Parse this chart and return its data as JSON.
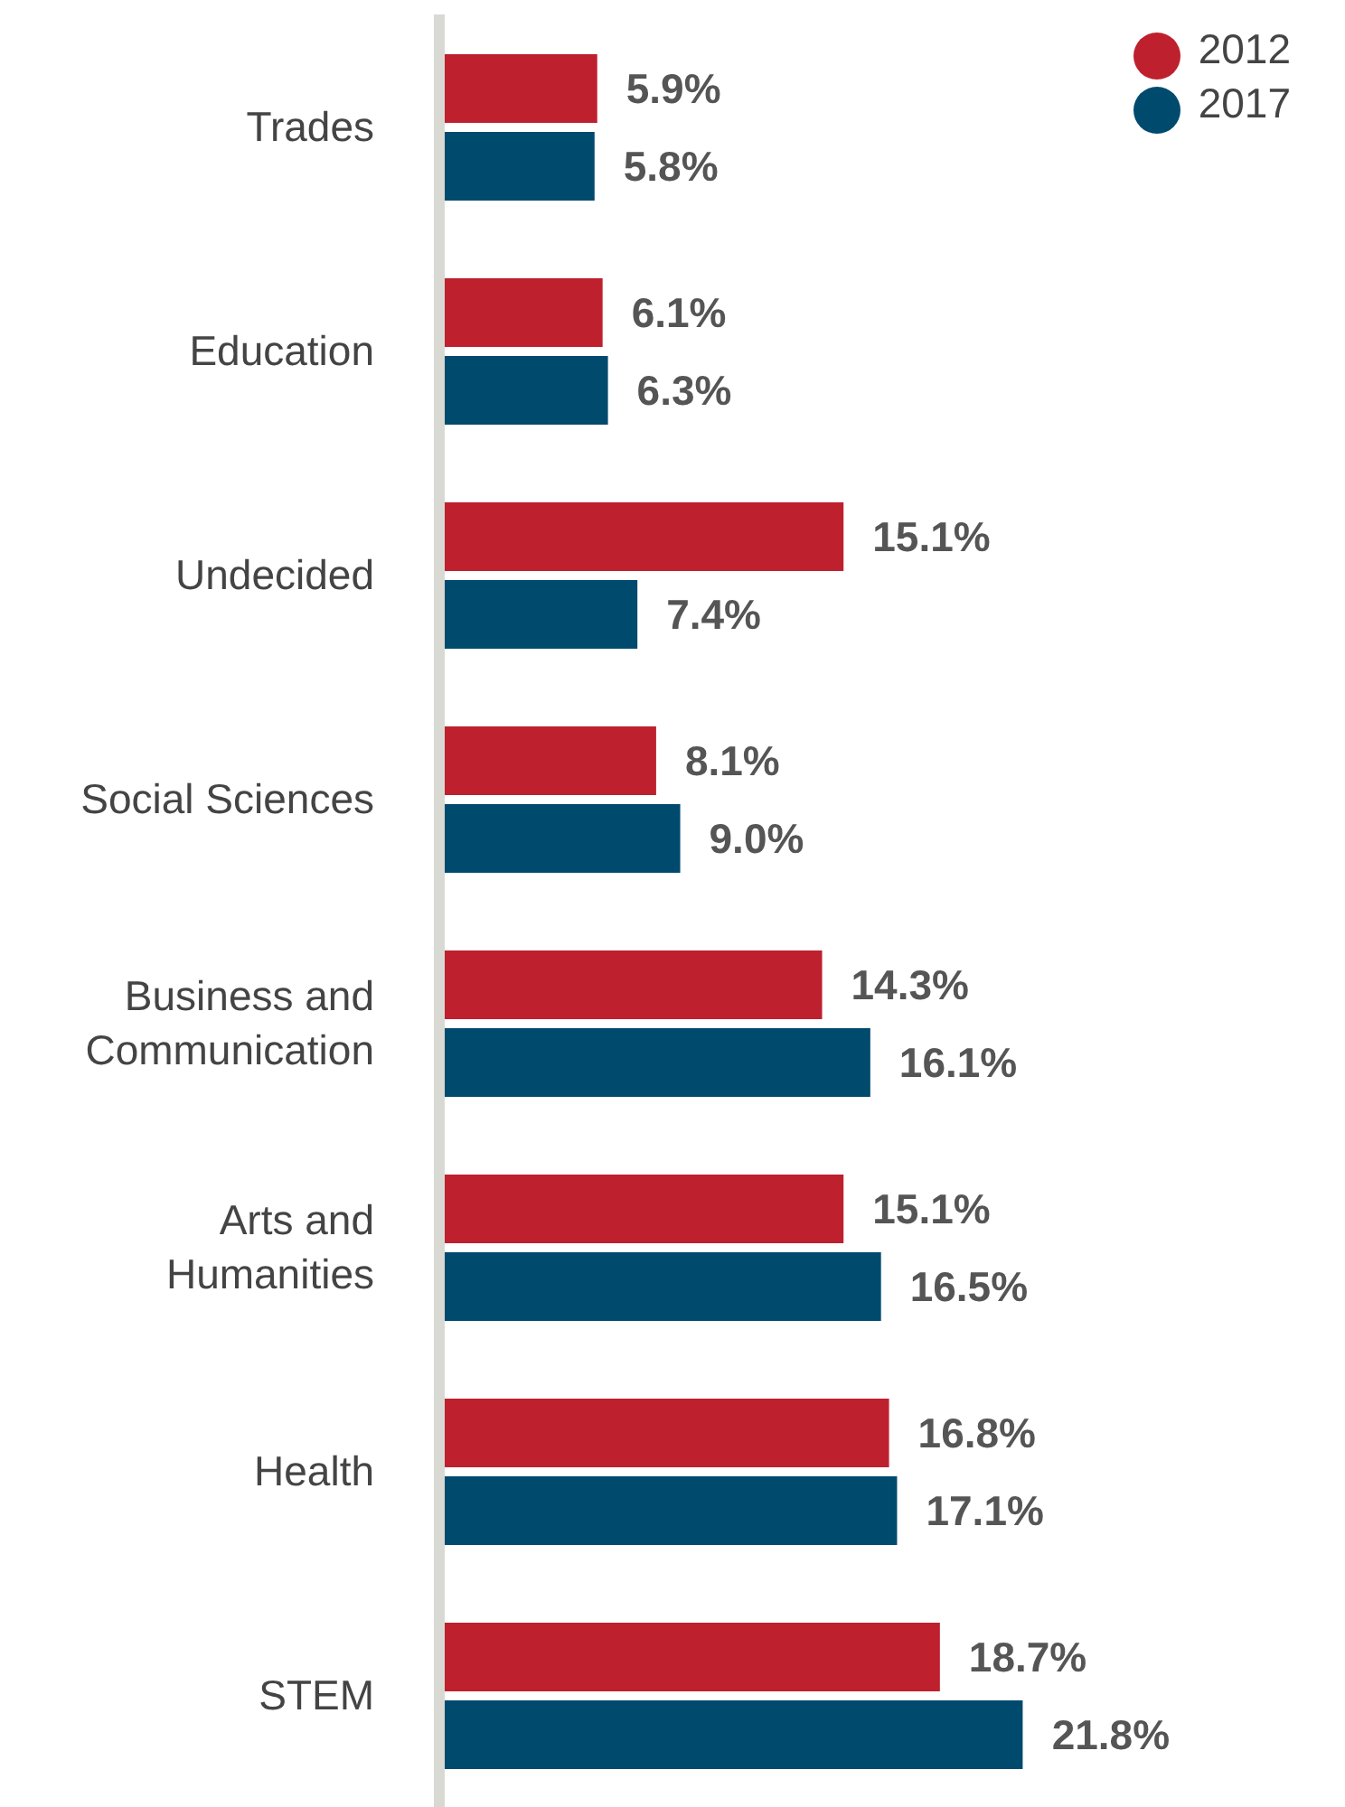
{
  "chart_data": {
    "type": "bar",
    "orientation": "horizontal",
    "categories": [
      "Trades",
      "Education",
      "Undecided",
      "Social Sciences",
      "Business and Communication",
      "Arts and Humanities",
      "Health",
      "STEM"
    ],
    "series": [
      {
        "name": "2012",
        "color": "#be202e",
        "values": [
          5.9,
          6.1,
          15.1,
          8.1,
          14.3,
          15.1,
          16.8,
          18.7
        ],
        "value_labels": [
          "5.9%",
          "6.1%",
          "15.1%",
          "8.1%",
          "14.3%",
          "15.1%",
          "16.8%",
          "18.7%"
        ]
      },
      {
        "name": "2017",
        "color": "#004a6e",
        "values": [
          5.8,
          6.3,
          7.4,
          9.0,
          16.1,
          16.5,
          17.1,
          21.8
        ],
        "value_labels": [
          "5.8%",
          "6.3%",
          "7.4%",
          "9.0%",
          "16.1%",
          "16.5%",
          "17.1%",
          "21.8%"
        ]
      }
    ],
    "tick_labels": "y",
    "legend": "top right"
  }
}
